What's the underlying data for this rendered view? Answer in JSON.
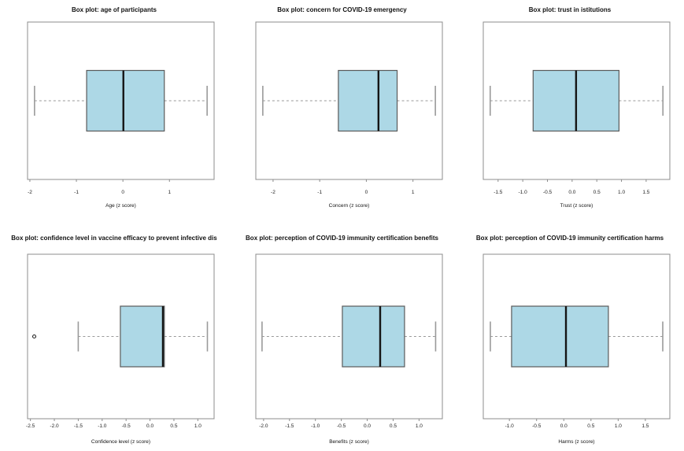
{
  "figure": {
    "background": "#ffffff",
    "description": "2x3 grid of R-style horizontal box plots of z-scored survey variables"
  },
  "styles": {
    "box_fill": "#ADD8E6",
    "box_border": "#5a5a5a",
    "median_color": "#151515",
    "whisker_color": "#9a9a9a",
    "staple_color": "#9a9a9a",
    "outlier_color": "#222222",
    "plot_border": "#8c8c8c",
    "text_color": "#111111",
    "tick_text_color": "#222222"
  },
  "chart_data": [
    {
      "type": "boxplot",
      "title": "Box plot: age of participants",
      "xlabel": "Age (z score)",
      "orientation": "horizontal",
      "xlim": [
        -2.05,
        1.96
      ],
      "ticks": {
        "values": [
          -2,
          -1,
          0,
          1
        ],
        "labels": [
          "-2",
          "-1",
          "0",
          "1"
        ]
      },
      "stats": {
        "whisker_low": -1.9,
        "q1": -0.78,
        "median": 0.01,
        "q3": 0.89,
        "whisker_high": 1.81,
        "outliers": []
      }
    },
    {
      "type": "boxplot",
      "title": "Box plot: concern for COVID-19 emergency",
      "xlabel": "Concern (z score)",
      "orientation": "horizontal",
      "xlim": [
        -2.37,
        1.63
      ],
      "ticks": {
        "values": [
          -2,
          -1,
          0,
          1
        ],
        "labels": [
          "-2",
          "-1",
          "0",
          "1"
        ]
      },
      "stats": {
        "whisker_low": -2.22,
        "q1": -0.6,
        "median": 0.26,
        "q3": 0.66,
        "whisker_high": 1.48,
        "outliers": []
      }
    },
    {
      "type": "boxplot",
      "title": "Box plot: trust in istitutions",
      "xlabel": "Trust (z score)",
      "orientation": "horizontal",
      "xlim": [
        -1.8,
        1.98
      ],
      "ticks": {
        "values": [
          -1.5,
          -1.0,
          -0.5,
          0.0,
          0.5,
          1.0,
          1.5
        ],
        "labels": [
          "-1.5",
          "-1.0",
          "-0.5",
          "0.0",
          "0.5",
          "1.0",
          "1.5"
        ]
      },
      "stats": {
        "whisker_low": -1.66,
        "q1": -0.79,
        "median": 0.08,
        "q3": 0.95,
        "whisker_high": 1.84,
        "outliers": []
      }
    },
    {
      "type": "boxplot",
      "title": "Box plot: confidence level in vaccine efficacy to prevent infective dis",
      "xlabel": "Confidence level (z score)",
      "orientation": "horizontal",
      "xlim": [
        -2.56,
        1.34
      ],
      "ticks": {
        "values": [
          -2.5,
          -2.0,
          -1.5,
          -1.0,
          -0.5,
          0.0,
          0.5,
          1.0
        ],
        "labels": [
          "-2.5",
          "-2.0",
          "-1.5",
          "-1.0",
          "-0.5",
          "0.0",
          "0.5",
          "1.0"
        ]
      },
      "stats": {
        "whisker_low": -1.5,
        "q1": -0.62,
        "median": 0.27,
        "q3": 0.3,
        "whisker_high": 1.2,
        "outliers": [
          -2.42
        ]
      }
    },
    {
      "type": "boxplot",
      "title": "Box plot: perception of COVID-19 immunity certification benefits",
      "xlabel": "Benefits (z score)",
      "orientation": "horizontal",
      "xlim": [
        -2.15,
        1.45
      ],
      "ticks": {
        "values": [
          -2.0,
          -1.5,
          -1.0,
          -0.5,
          0.0,
          0.5,
          1.0
        ],
        "labels": [
          "-2.0",
          "-1.5",
          "-1.0",
          "-0.5",
          "0.0",
          "0.5",
          "1.0"
        ]
      },
      "stats": {
        "whisker_low": -2.03,
        "q1": -0.48,
        "median": 0.25,
        "q3": 0.72,
        "whisker_high": 1.32,
        "outliers": []
      }
    },
    {
      "type": "boxplot",
      "title": "Box plot: perception of COVID-19 immunity certification harms",
      "xlabel": "Harms (z score)",
      "orientation": "horizontal",
      "xlim": [
        -1.48,
        1.95
      ],
      "ticks": {
        "values": [
          -1.0,
          -0.5,
          0.0,
          0.5,
          1.0,
          1.5
        ],
        "labels": [
          "-1.0",
          "-0.5",
          "0.0",
          "0.5",
          "1.0",
          "1.5"
        ]
      },
      "stats": {
        "whisker_low": -1.35,
        "q1": -0.96,
        "median": 0.04,
        "q3": 0.82,
        "whisker_high": 1.82,
        "outliers": []
      }
    }
  ]
}
